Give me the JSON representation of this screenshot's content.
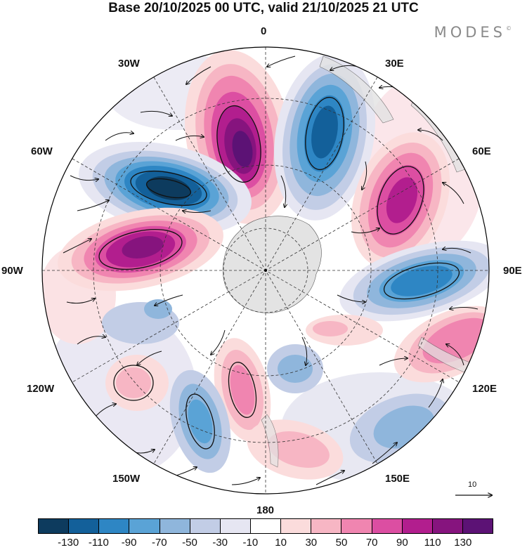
{
  "title": "Base 20/10/2025 00 UTC, valid 21/10/2025 21 UTC",
  "brand": "MODES",
  "brand_mark": "©",
  "longitude_labels": {
    "lon_0": "0",
    "lon_30e": "30E",
    "lon_60e": "60E",
    "lon_90e": "90E",
    "lon_120e": "120E",
    "lon_150e": "150E",
    "lon_180": "180",
    "lon_150w": "150W",
    "lon_120w": "120W",
    "lon_90w": "90W",
    "lon_60w": "60W",
    "lon_30w": "30W"
  },
  "reference_vector_label": "10",
  "colors": {
    "land": "#e3e3e3",
    "neg_deep": "#0c4a6e",
    "pos_deep": "#6a1a78"
  },
  "colorbar": {
    "colors": [
      "#0d3b5e",
      "#13609a",
      "#2e86c4",
      "#5aa3d6",
      "#8fb6dc",
      "#c2cde6",
      "#e6e6f2",
      "#ffffff",
      "#fbdcdc",
      "#f7b6c4",
      "#f085b0",
      "#dc4ea2",
      "#b21e8e",
      "#86147e",
      "#5c1275"
    ],
    "ticks": [
      "-130",
      "-110",
      "-90",
      "-70",
      "-50",
      "-30",
      "-10",
      "10",
      "30",
      "50",
      "70",
      "90",
      "110",
      "130"
    ]
  }
}
